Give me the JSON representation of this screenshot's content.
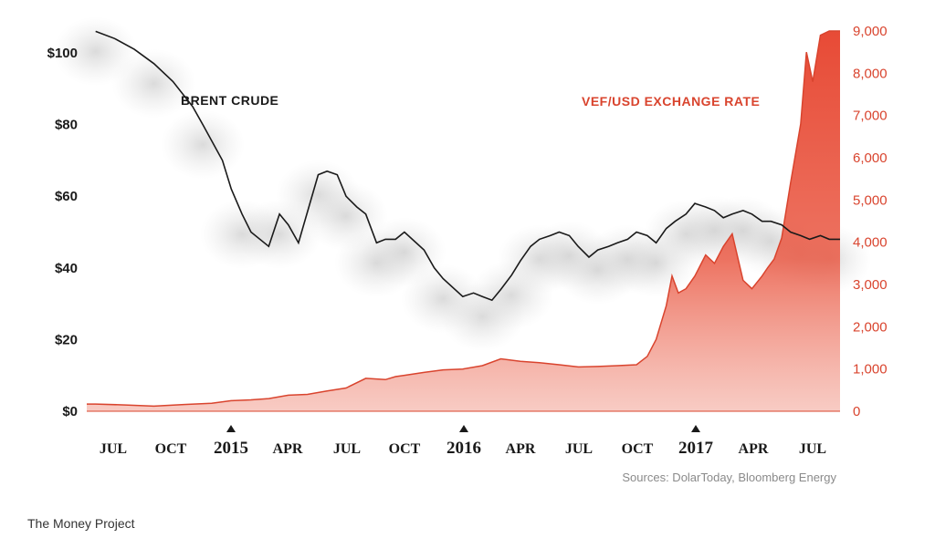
{
  "chart_data": {
    "type": "line",
    "x_ticks": [
      "JUL",
      "OCT",
      "2015",
      "APR",
      "JUL",
      "OCT",
      "2016",
      "APR",
      "JUL",
      "OCT",
      "2017",
      "APR",
      "JUL"
    ],
    "year_ticks": [
      "2015",
      "2016",
      "2017"
    ],
    "y_left": {
      "ticks": [
        "$0",
        "$20",
        "$40",
        "$60",
        "$80",
        "$100"
      ],
      "range": [
        0,
        105
      ]
    },
    "y_right": {
      "ticks": [
        "0",
        "1,000",
        "2,000",
        "3,000",
        "4,000",
        "5,000",
        "6,000",
        "7,000",
        "8,000",
        "9,000"
      ],
      "range": [
        0,
        9000
      ]
    },
    "series": [
      {
        "name": "BRENT CRUDE",
        "axis": "left",
        "color": "#1a1a1a",
        "x": [
          "2014-06-15",
          "2014-07-15",
          "2014-08-15",
          "2014-09-15",
          "2014-10-15",
          "2014-11-15",
          "2014-12-01",
          "2015-01-01",
          "2015-01-15",
          "2015-02-01",
          "2015-02-15",
          "2015-03-15",
          "2015-04-01",
          "2015-04-15",
          "2015-05-01",
          "2015-06-01",
          "2015-06-15",
          "2015-07-01",
          "2015-07-15",
          "2015-08-01",
          "2015-08-15",
          "2015-09-01",
          "2015-09-15",
          "2015-10-01",
          "2015-10-15",
          "2015-11-15",
          "2015-12-01",
          "2015-12-15",
          "2016-01-15",
          "2016-02-01",
          "2016-02-15",
          "2016-03-01",
          "2016-03-15",
          "2016-04-01",
          "2016-04-15",
          "2016-05-01",
          "2016-05-15",
          "2016-06-01",
          "2016-06-15",
          "2016-07-01",
          "2016-07-15",
          "2016-08-01",
          "2016-08-15",
          "2016-09-01",
          "2016-09-15",
          "2016-10-01",
          "2016-10-15",
          "2016-11-01",
          "2016-11-15",
          "2016-12-01",
          "2016-12-15",
          "2017-01-01",
          "2017-01-15",
          "2017-02-01",
          "2017-02-15",
          "2017-03-01",
          "2017-03-15",
          "2017-04-01",
          "2017-04-15",
          "2017-05-01",
          "2017-05-15",
          "2017-06-01",
          "2017-06-15",
          "2017-07-01",
          "2017-07-15",
          "2017-08-01",
          "2017-08-15",
          "2017-09-01"
        ],
        "values": [
          106,
          104,
          101,
          97,
          92,
          85,
          80,
          70,
          62,
          55,
          50,
          46,
          55,
          52,
          47,
          66,
          67,
          66,
          60,
          57,
          55,
          47,
          48,
          48,
          50,
          45,
          40,
          37,
          32,
          33,
          32,
          31,
          34,
          38,
          42,
          46,
          48,
          49,
          50,
          49,
          46,
          43,
          45,
          46,
          47,
          48,
          50,
          49,
          47,
          51,
          53,
          55,
          58,
          57,
          56,
          54,
          55,
          56,
          55,
          53,
          53,
          52,
          50,
          49,
          48,
          49,
          48,
          48
        ]
      },
      {
        "name": "VEF/USD EXCHANGE RATE",
        "axis": "right",
        "color": "#d9442e",
        "x": [
          "2014-06-15",
          "2014-08-01",
          "2014-09-15",
          "2014-11-01",
          "2014-12-15",
          "2015-01-15",
          "2015-02-15",
          "2015-03-15",
          "2015-04-15",
          "2015-05-15",
          "2015-06-15",
          "2015-07-15",
          "2015-08-15",
          "2015-09-15",
          "2015-10-01",
          "2015-10-15",
          "2015-11-15",
          "2015-12-15",
          "2016-01-15",
          "2016-02-15",
          "2016-03-15",
          "2016-04-15",
          "2016-05-15",
          "2016-06-15",
          "2016-07-15",
          "2016-08-15",
          "2016-09-15",
          "2016-10-15",
          "2016-11-01",
          "2016-11-15",
          "2016-12-01",
          "2016-12-10",
          "2016-12-20",
          "2017-01-01",
          "2017-01-15",
          "2017-02-01",
          "2017-02-15",
          "2017-03-01",
          "2017-03-15",
          "2017-04-01",
          "2017-04-15",
          "2017-05-01",
          "2017-05-10",
          "2017-05-20",
          "2017-06-01",
          "2017-06-15",
          "2017-07-01",
          "2017-07-10",
          "2017-07-20",
          "2017-08-01",
          "2017-08-15",
          "2017-09-01"
        ],
        "values": [
          170,
          150,
          120,
          160,
          190,
          250,
          270,
          300,
          380,
          400,
          480,
          550,
          780,
          750,
          820,
          850,
          920,
          980,
          1000,
          1080,
          1240,
          1180,
          1150,
          1100,
          1050,
          1060,
          1080,
          1100,
          1300,
          1700,
          2500,
          3200,
          2800,
          2900,
          3200,
          3700,
          3500,
          3900,
          4200,
          3100,
          2900,
          3200,
          3400,
          3600,
          4100,
          5400,
          6800,
          8500,
          7800,
          8900,
          9000,
          9000
        ]
      }
    ]
  },
  "source_text": "Sources: DolarToday, Bloomberg Energy",
  "credit_text": "The Money Project"
}
